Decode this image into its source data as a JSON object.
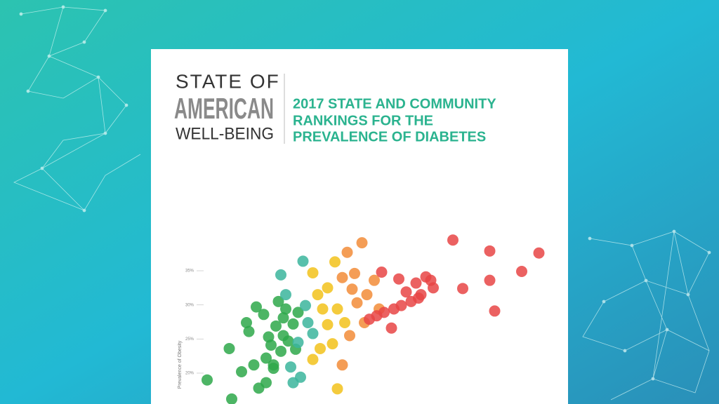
{
  "header": {
    "brand": [
      "STATE OF",
      "AMERICAN",
      "WELL-BEING"
    ],
    "title": [
      "2017 STATE AND COMMUNITY",
      "RANKINGS FOR THE",
      "PREVALENCE OF DIABETES"
    ]
  },
  "chart_data": {
    "type": "scatter",
    "y_label": "Prevalence of Obesity",
    "xlim": [
      4.5,
      19.5
    ],
    "ylim": [
      15,
      40
    ],
    "yticks": [
      {
        "value": 20,
        "label": "20%"
      },
      {
        "value": 25,
        "label": "25%"
      },
      {
        "value": 30,
        "label": "30%"
      },
      {
        "value": 35,
        "label": "35%"
      }
    ],
    "series": [
      {
        "color": "#2ea84a",
        "x": [
          5.5,
          6.4,
          6.5,
          6.9,
          7.1,
          7.2,
          7.4,
          7.5,
          7.6,
          7.8,
          7.9,
          7.9,
          8.0,
          8.1,
          8.2,
          8.3,
          8.4,
          8.5,
          8.6,
          8.6,
          8.7,
          8.8,
          9.0,
          9.1,
          9.2,
          8.2
        ],
        "values": [
          19.0,
          23.6,
          16.2,
          20.2,
          27.4,
          26.1,
          21.2,
          29.7,
          17.8,
          28.6,
          22.2,
          18.6,
          25.3,
          24.1,
          21.2,
          26.9,
          30.5,
          23.2,
          28.1,
          25.5,
          29.4,
          24.7,
          27.2,
          23.5,
          28.9,
          20.7
        ]
      },
      {
        "color": "#3bb59c",
        "x": [
          8.5,
          8.7,
          9.4,
          8.9,
          9.3,
          9.0,
          9.5,
          9.6,
          9.8,
          9.2
        ],
        "values": [
          34.4,
          31.5,
          36.4,
          20.9,
          19.4,
          18.6,
          29.9,
          27.4,
          25.8,
          24.5
        ]
      },
      {
        "color": "#f2c21b",
        "x": [
          9.8,
          10.7,
          10.0,
          10.2,
          10.4,
          9.8,
          10.6,
          10.8,
          10.1,
          10.4,
          10.8,
          11.1
        ],
        "values": [
          34.7,
          36.3,
          31.5,
          29.4,
          27.1,
          22.0,
          24.3,
          17.7,
          23.6,
          32.5,
          29.4,
          27.4
        ]
      },
      {
        "color": "#f28c38",
        "x": [
          11.2,
          11.8,
          11.0,
          11.4,
          11.6,
          11.0,
          11.3,
          11.9,
          12.0,
          11.5,
          12.3,
          12.5
        ],
        "values": [
          37.7,
          39.1,
          34.0,
          32.3,
          30.3,
          21.2,
          25.5,
          27.4,
          31.5,
          34.6,
          33.6,
          29.4
        ]
      },
      {
        "color": "#e84545",
        "x": [
          15.5,
          17.0,
          19.0,
          18.3,
          17.0,
          15.9,
          17.2,
          12.6,
          13.0,
          13.3,
          13.6,
          14.0,
          14.4,
          14.7,
          14.6,
          14.2,
          13.8,
          13.4,
          13.1,
          12.7,
          12.4,
          12.1,
          14.1
        ],
        "values": [
          39.5,
          37.9,
          37.6,
          34.9,
          33.6,
          32.4,
          29.1,
          34.8,
          26.6,
          33.8,
          31.9,
          33.2,
          34.1,
          32.5,
          33.6,
          31.5,
          30.5,
          29.9,
          29.4,
          28.9,
          28.4,
          27.9,
          31.0
        ]
      }
    ]
  }
}
